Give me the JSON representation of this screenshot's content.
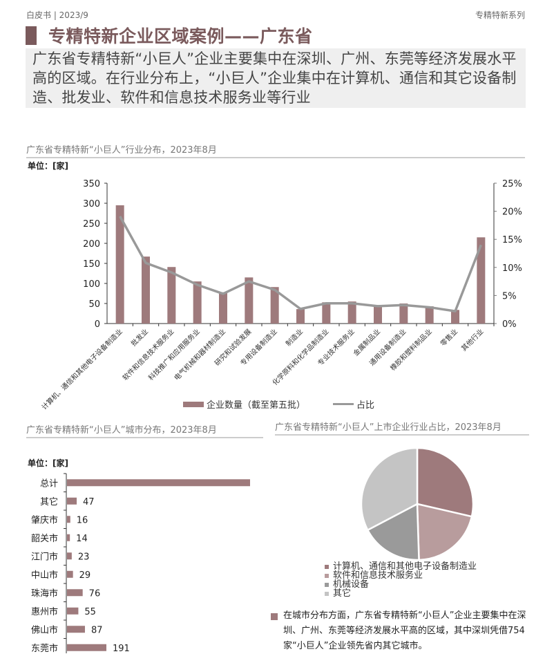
{
  "header": {
    "left": "白皮书 | 2023/9",
    "right": "专精特新系列"
  },
  "page_title": "专精特新企业区域案例——广东省",
  "summary": "广东省专精特新“小巨人”企业主要集中在深圳、广州、东莞等经济发展水平高的区域。在行业分布上，“小巨人”企业集中在计算机、通信和其它设备制造、批发业、软件和信息技术服务业等行业",
  "colors": {
    "accent": "#7a5a5c",
    "bar": "#9e7a7c",
    "line": "#999999",
    "pie": [
      "#9e7a7c",
      "#b89c9d",
      "#9a9a9a",
      "#c4c4c4"
    ]
  },
  "industry_chart": {
    "title": "广东省专精特新“小巨人”行业分布，2023年8月",
    "unit": "单位：[家]",
    "legend_bar": "企业数量（截至第五批）",
    "legend_line": "占比",
    "left_ticks": [
      "350",
      "300",
      "250",
      "200",
      "150",
      "100",
      "50",
      "0"
    ],
    "right_ticks": [
      "25%",
      "20%",
      "15%",
      "10%",
      "5%",
      "0%"
    ]
  },
  "city_chart": {
    "title": "广东省专精特新“小巨人”城市分布，2023年8月",
    "unit": "单位：[家]"
  },
  "pie_chart": {
    "title": "广东省专精特新“小巨人”上市企业行业占比，2023年8月",
    "legend": [
      "计算机、通信和其他电子设备制造业",
      "软件和信息技术服务业",
      "机械设备",
      "其它"
    ]
  },
  "note": "在城市分布方面，广东省专精特新“小巨人”企业主要集中在深圳、广州、东莞等经济发展水平高的区域，其中深圳凭借754家“小巨人”企业领先省内其它城市。",
  "chart_data": [
    {
      "type": "bar",
      "title": "广东省专精特新“小巨人”行业分布，2023年8月",
      "ylabel": "单位：[家]",
      "ylim": [
        0,
        350
      ],
      "y2lim": [
        0,
        0.25
      ],
      "categories": [
        "计算机、通信和其他电子设备制造业",
        "批发业",
        "软件和信息技术服务业",
        "科技推广和应用服务业",
        "电气机械和器材制造业",
        "研究和试验发展",
        "专用设备制造业",
        "制造业",
        "化学原料和化学品制造业",
        "专业技术服务业",
        "金属制品业",
        "通用设备制造业",
        "橡胶和塑料制品业",
        "零售业",
        "其他行业"
      ],
      "series": [
        {
          "name": "企业数量（截至第五批）",
          "type": "bar",
          "axis": "left",
          "values": [
            295,
            167,
            141,
            105,
            78,
            115,
            91,
            36,
            53,
            55,
            46,
            50,
            43,
            34,
            215
          ]
        },
        {
          "name": "占比",
          "type": "line",
          "axis": "right",
          "values": [
            0.191,
            0.108,
            0.091,
            0.069,
            0.053,
            0.075,
            0.06,
            0.026,
            0.036,
            0.036,
            0.031,
            0.033,
            0.029,
            0.022,
            0.14
          ]
        }
      ],
      "legend_position": "bottom"
    },
    {
      "type": "bar",
      "orientation": "horizontal",
      "title": "广东省专精特新“小巨人”城市分布，2023年8月",
      "xlabel": "单位：[家]",
      "categories": [
        "总计",
        "其它",
        "肇庆市",
        "韶关市",
        "江门市",
        "中山市",
        "珠海市",
        "惠州市",
        "佛山市",
        "东莞市"
      ],
      "values": [
        888,
        47,
        16,
        14,
        23,
        29,
        76,
        55,
        87,
        191
      ],
      "labels": [
        "",
        "47",
        "16",
        "14",
        "23",
        "29",
        "76",
        "55",
        "87",
        "191"
      ]
    },
    {
      "type": "pie",
      "title": "广东省专精特新“小巨人”上市企业行业占比，2023年8月",
      "categories": [
        "计算机、通信和其他电子设备制造业",
        "软件和信息技术服务业",
        "机械设备",
        "其它"
      ],
      "values": [
        28.6,
        20.9,
        17.8,
        32.7
      ],
      "legend_position": "bottom"
    }
  ]
}
